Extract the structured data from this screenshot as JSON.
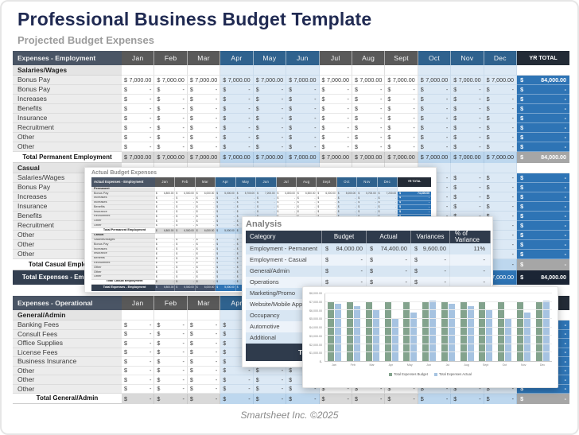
{
  "page": {
    "title": "Professional Business Budget Template",
    "subtitle": "Projected Budget Expenses",
    "footer": "Smartsheet Inc. ©2025"
  },
  "months": [
    "Jan",
    "Feb",
    "Mar",
    "Apr",
    "May",
    "Jun",
    "Jul",
    "Aug",
    "Sept",
    "Oct",
    "Nov",
    "Dec"
  ],
  "yr_total_label": "YR TOTAL",
  "projected": {
    "header_label": "Expenses - Employment",
    "sections": [
      {
        "name": "Salaries/Wages",
        "rows": [
          {
            "label": "Bonus Pay",
            "cells": "7,000.00",
            "total": "84,000.00"
          },
          {
            "label": "Bonus Pay",
            "cells": "-",
            "total": "-"
          },
          {
            "label": "Increases",
            "cells": "-",
            "total": "-"
          },
          {
            "label": "Benefits",
            "cells": "-",
            "total": "-"
          },
          {
            "label": "Insurance",
            "cells": "-",
            "total": "-"
          },
          {
            "label": "Recruitment",
            "cells": "-",
            "total": "-"
          },
          {
            "label": "Other",
            "cells": "-",
            "total": "-"
          },
          {
            "label": "Other",
            "cells": "-",
            "total": "-"
          }
        ],
        "total_row": {
          "label": "Total Permanent Employment",
          "cells": "7,000.00",
          "total": "84,000.00"
        }
      },
      {
        "name": "Casual",
        "rows": [
          {
            "label": "Salaries/Wages",
            "cells": "-",
            "total": "-"
          },
          {
            "label": "Bonus Pay",
            "cells": "-",
            "total": "-"
          },
          {
            "label": "Increases",
            "cells": "-",
            "total": "-"
          },
          {
            "label": "Insurance",
            "cells": "-",
            "total": "-"
          },
          {
            "label": "Benefits",
            "cells": "-",
            "total": "-"
          },
          {
            "label": "Recruitment",
            "cells": "-",
            "total": "-"
          },
          {
            "label": "Other",
            "cells": "-",
            "total": "-"
          },
          {
            "label": "Other",
            "cells": "-",
            "total": "-"
          },
          {
            "label": "Other",
            "cells": "-",
            "total": "-"
          }
        ],
        "total_row": {
          "label": "Total Casual Employment",
          "cells": "-",
          "total": "-"
        }
      }
    ],
    "grand_row": {
      "label": "Total Expenses - Employment",
      "cells": "7,000.00",
      "total": "84,000.00"
    }
  },
  "operational": {
    "header_label": "Expenses - Operational",
    "sections": [
      {
        "name": "General/Admin",
        "rows": [
          {
            "label": "Banking Fees",
            "cells": "-",
            "total": "-"
          },
          {
            "label": "Consult Fees",
            "cells": "-",
            "total": "-"
          },
          {
            "label": "Office Supplies",
            "cells": "-",
            "total": "-"
          },
          {
            "label": "License Fees",
            "cells": "-",
            "total": "-"
          },
          {
            "label": "Business Insurance",
            "cells": "-",
            "total": "-"
          },
          {
            "label": "Other",
            "cells": "-",
            "total": "-"
          },
          {
            "label": "Other",
            "cells": "-",
            "total": "-"
          },
          {
            "label": "Other",
            "cells": "-",
            "total": "-"
          }
        ],
        "total_row": {
          "label": "Total General/Admin",
          "cells": "-",
          "total": "-"
        }
      }
    ],
    "grand_row": null
  },
  "actual_window": {
    "title": "Actual Budget Expenses",
    "header_label": "Actual Expenses - Employment",
    "sections": [
      {
        "name": "Permanent",
        "rows": [
          {
            "label": "Bonus Pay",
            "cells": [
              "6,800.00",
              "6,500.00",
              "6,000.00",
              "5,000.00",
              "5,700.00",
              "7,200.00",
              "6,800.00",
              "6,500.00",
              "6,000.00",
              "5,000.00",
              "5,700.00",
              "7,200.00"
            ],
            "total": "74,400.00"
          },
          {
            "label": "Increases",
            "cells": "-",
            "total": "-"
          },
          {
            "label": "Increases",
            "cells": "-",
            "total": "-"
          },
          {
            "label": "Benefits",
            "cells": "-",
            "total": "-"
          },
          {
            "label": "Insurance",
            "cells": "-",
            "total": "-"
          },
          {
            "label": "Recruitment",
            "cells": "-",
            "total": "-"
          },
          {
            "label": "Other",
            "cells": "-",
            "total": "-"
          },
          {
            "label": "Other",
            "cells": "-",
            "total": "-"
          }
        ],
        "total_row": {
          "label": "Total Permanent Employment",
          "cells": [
            "6,800.00",
            "6,500.00",
            "6,000.00",
            "5,000.00",
            "5,700.00",
            "7,200.00",
            "6,800.00",
            "6,500.00",
            "6,000.00",
            "5,000.00",
            "5,700.00",
            "7,200.00"
          ],
          "total": "74,400.00"
        }
      },
      {
        "name": "Casual",
        "rows": [
          {
            "label": "Salaries/Wages",
            "cells": "-",
            "total": "-"
          },
          {
            "label": "Bonus Pay",
            "cells": "-",
            "total": "-"
          },
          {
            "label": "Increases",
            "cells": "-",
            "total": "-"
          },
          {
            "label": "Insurance",
            "cells": "-",
            "total": "-"
          },
          {
            "label": "Benefits",
            "cells": "-",
            "total": "-"
          },
          {
            "label": "Recruitment",
            "cells": "-",
            "total": "-"
          },
          {
            "label": "Other",
            "cells": "-",
            "total": "-"
          },
          {
            "label": "Other",
            "cells": "-",
            "total": "-"
          },
          {
            "label": "Other",
            "cells": "-",
            "total": "-"
          }
        ],
        "total_row": {
          "label": "Total Casual Employment",
          "cells": "-",
          "total": "-"
        }
      }
    ],
    "grand_row": {
      "label": "Total Expenses - Employment",
      "cells": [
        "6,800.00",
        "6,500.00",
        "6,000.00",
        "5,000.00",
        "5,700.00",
        "7,200.00",
        "6,800.00",
        "6,500.00",
        "6,000.00",
        "5,000.00",
        "5,700.00",
        "7,200.00"
      ],
      "total": "74,400.00"
    }
  },
  "analysis": {
    "title": "Analysis",
    "columns": [
      "Category",
      "Budget",
      "Actual",
      "Variances",
      "% of Variance"
    ],
    "rows": [
      {
        "category": "Employment - Permanent",
        "budget": "84,000.00",
        "actual": "74,400.00",
        "variance": "9,600.00",
        "pct": "11%"
      },
      {
        "category": "Employment - Casual",
        "budget": "-",
        "actual": "-",
        "variance": "-",
        "pct": "-"
      },
      {
        "category": "General/Admin",
        "budget": "-",
        "actual": "-",
        "variance": "-",
        "pct": "-"
      },
      {
        "category": "Operations",
        "budget": "-",
        "actual": "-",
        "variance": "-",
        "pct": "-"
      },
      {
        "category": "Marketing/Promo",
        "budget": "-",
        "actual": "-",
        "variance": "-",
        "pct": "-"
      },
      {
        "category": "Website/Mobile App",
        "budget": "-",
        "actual": "-",
        "variance": "-",
        "pct": "-"
      },
      {
        "category": "Occupancy",
        "budget": "-",
        "actual": "-",
        "variance": "-",
        "pct": "-"
      },
      {
        "category": "Automotive",
        "budget": "-",
        "actual": "-",
        "variance": "-",
        "pct": "-"
      },
      {
        "category": "Additional",
        "budget": "-",
        "actual": "-",
        "variance": "-",
        "pct": "-"
      }
    ],
    "total_label": "Total Expenses"
  },
  "chart_data": {
    "type": "bar",
    "categories": [
      "Jan",
      "Feb",
      "Mar",
      "Apr",
      "May",
      "Jun",
      "Jul",
      "Aug",
      "Sept",
      "Oct",
      "Nov",
      "Dec"
    ],
    "series": [
      {
        "name": "Total Expenses Budget",
        "color": "#83A38D",
        "values": [
          7000,
          7000,
          7000,
          7000,
          7000,
          7000,
          7000,
          7000,
          7000,
          7000,
          7000,
          7000
        ]
      },
      {
        "name": "Total Expenses Actual",
        "color": "#A6C3E1",
        "values": [
          6800,
          6500,
          6000,
          5000,
          5700,
          7200,
          6800,
          6500,
          6000,
          5000,
          5700,
          7200
        ]
      }
    ],
    "ylim": [
      0,
      8000
    ],
    "ytick_labels": [
      "$-",
      "$1,000.00",
      "$2,000.00",
      "$3,000.00",
      "$4,000.00",
      "$5,000.00",
      "$6,000.00",
      "$7,000.00",
      "$8,000.00"
    ],
    "grid": true,
    "legend_position": "bottom"
  },
  "colors": {
    "title_navy": "#202A52",
    "header_slate": "#4A5565",
    "header_gray": "#595959",
    "header_blue": "#2F628E",
    "yr_header": "#232B36",
    "yr_cell_blue": "#2E74B5",
    "quarter_tint": "#DCE9F5",
    "total_gray": "#A6A6A6",
    "grand_navy": "#333F50"
  }
}
